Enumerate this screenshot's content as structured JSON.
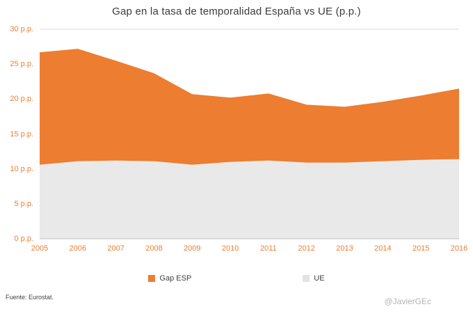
{
  "title": "Gap en la tasa de temporalidad España vs UE (p.p.)",
  "chart_data": {
    "type": "area",
    "stacked": true,
    "title": "Gap en la tasa de temporalidad España vs UE (p.p.)",
    "x": [
      2005,
      2006,
      2007,
      2008,
      2009,
      2010,
      2011,
      2012,
      2013,
      2014,
      2015,
      2016
    ],
    "series": [
      {
        "name": "UE",
        "color": "#e9e9e9",
        "values": [
          10.6,
          11.1,
          11.2,
          11.1,
          10.6,
          11.0,
          11.2,
          10.9,
          10.9,
          11.1,
          11.3,
          11.4
        ]
      },
      {
        "name": "Gap ESP",
        "color": "#ed7d31",
        "values": [
          16.1,
          16.1,
          14.3,
          12.6,
          10.1,
          9.2,
          9.6,
          8.3,
          8.0,
          8.5,
          9.2,
          10.1
        ]
      }
    ],
    "ylim": [
      0,
      30
    ],
    "ytick_step": 5,
    "yticks": [
      "0 p.p.",
      "5 p.p.",
      "10 p.p.",
      "15 p.p.",
      "20 p.p.",
      "25 p.p.",
      "30 p.p."
    ],
    "grid": "top-line-only",
    "legend_position": "bottom",
    "legend": [
      {
        "label": "Gap ESP",
        "color": "#ed7d31"
      },
      {
        "label": "UE",
        "color": "#e3e3e3"
      }
    ]
  },
  "footer": {
    "source": "Fuente: Eurostat."
  },
  "watermark": "@JavierGEc",
  "colors": {
    "accent_orange": "#ed7d31",
    "area_gray": "#e9e9e9",
    "axis_line": "#bfbfbf",
    "top_gridline": "#d9d9d9",
    "title_text": "#3b3b3b",
    "tick_text": "#ed7d31"
  }
}
